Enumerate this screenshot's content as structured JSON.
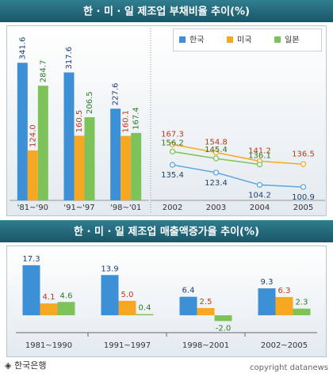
{
  "chart_data": [
    {
      "type": "bar",
      "title": "한 · 미 · 일 제조업 부채비율 추이(%)",
      "categories": [
        "'81~'90",
        "'91~'97",
        "'98~'01"
      ],
      "series": [
        {
          "name": "한국",
          "color": "#3d8fd6",
          "values": [
            341.6,
            317.6,
            227.6
          ],
          "value_labels": [
            "341.6",
            "317.6",
            "227.6"
          ]
        },
        {
          "name": "미국",
          "color": "#f7a823",
          "values": [
            124.0,
            160.5,
            160.1
          ],
          "value_labels": [
            "124.0",
            "160.5",
            "160.1"
          ]
        },
        {
          "name": "일본",
          "color": "#7ec35a",
          "values": [
            284.7,
            206.5,
            167.4
          ],
          "value_labels": [
            "284.7",
            "206.5",
            "167.4"
          ]
        }
      ],
      "ylim": [
        0,
        350
      ],
      "legend": "top-right"
    },
    {
      "type": "line",
      "categories": [
        "2002",
        "2003",
        "2004",
        "2005"
      ],
      "series": [
        {
          "name": "한국",
          "color": "#5aa6e0",
          "values": [
            135.4,
            123.4,
            104.2,
            100.9
          ],
          "value_labels": [
            "135.4",
            "123.4",
            "104.2",
            "100.9"
          ]
        },
        {
          "name": "미국",
          "color": "#f7a823",
          "values": [
            167.3,
            154.8,
            141.2,
            136.5
          ],
          "value_labels": [
            "167.3",
            "154.8",
            "141.2",
            "136.5"
          ]
        },
        {
          "name": "일본",
          "color": "#7ec35a",
          "values": [
            156.2,
            145.4,
            136.1,
            null
          ],
          "value_labels": [
            "156.2",
            "145.4",
            "136.1",
            null
          ]
        }
      ],
      "ylim": [
        80,
        300
      ]
    },
    {
      "type": "bar",
      "title": "한 · 미 · 일 제조업 매출액증가율 추이(%)",
      "categories": [
        "1981~1990",
        "1991~1997",
        "1998~2001",
        "2002~2005"
      ],
      "series": [
        {
          "name": "한국",
          "color": "#3d8fd6",
          "values": [
            17.3,
            13.9,
            6.4,
            9.3
          ],
          "value_labels": [
            "17.3",
            "13.9",
            "6.4",
            "9.3"
          ]
        },
        {
          "name": "미국",
          "color": "#f7a823",
          "values": [
            4.1,
            5.0,
            2.5,
            6.3
          ],
          "value_labels": [
            "4.1",
            "5.0",
            "2.5",
            "6.3"
          ]
        },
        {
          "name": "일본",
          "color": "#7ec35a",
          "values": [
            4.6,
            0.4,
            -2.0,
            2.3
          ],
          "value_labels": [
            "4.6",
            "0.4",
            "-2.0",
            "2.3"
          ]
        }
      ],
      "ylim": [
        -6,
        20
      ]
    }
  ],
  "footer": {
    "source": "◈ 한국은행",
    "copyright": "copyright datanews"
  }
}
